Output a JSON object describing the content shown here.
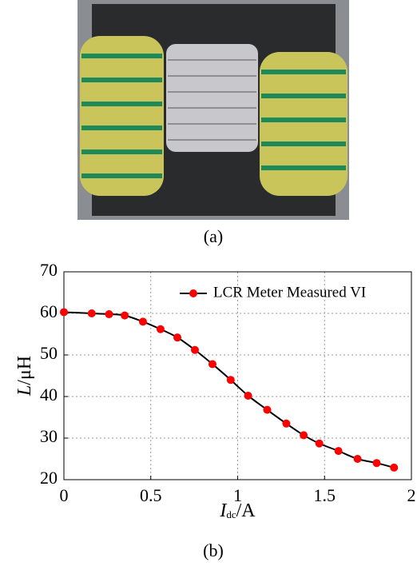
{
  "figure": {
    "caption_a": "(a)",
    "caption_b": "(b)",
    "chart_data": {
      "type": "line",
      "x_label": {
        "italic": "I",
        "subscript": "dc",
        "unit": "/A"
      },
      "y_label": {
        "italic": "L",
        "unit": "/μH"
      },
      "x": [
        0,
        0.16,
        0.26,
        0.35,
        0.455,
        0.556,
        0.653,
        0.754,
        0.855,
        0.96,
        1.06,
        1.17,
        1.28,
        1.38,
        1.47,
        1.58,
        1.69,
        1.8,
        1.9
      ],
      "series": [
        {
          "name": "LCR Meter Measured VI",
          "color": "#000000",
          "marker_color": "#ff0000",
          "values": [
            60.3,
            60.0,
            59.8,
            59.5,
            58.0,
            56.2,
            54.2,
            51.2,
            47.8,
            44.0,
            40.2,
            36.8,
            33.5,
            30.7,
            28.7,
            26.9,
            25.0,
            24.0,
            22.9
          ]
        }
      ],
      "xlim": [
        0,
        2
      ],
      "xticks": [
        0,
        0.5,
        1,
        1.5,
        2
      ],
      "ylim": [
        20,
        70
      ],
      "yticks": [
        20,
        30,
        40,
        50,
        60,
        70
      ],
      "grid": true,
      "legend": "top-right"
    }
  }
}
